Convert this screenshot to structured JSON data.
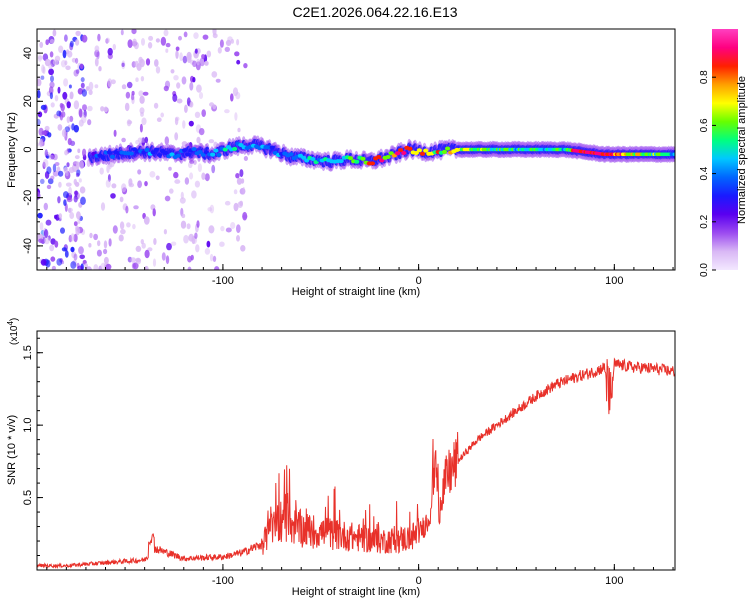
{
  "title": "C2E1.2026.064.22.16.E13",
  "chart_data": [
    {
      "type": "heatmap",
      "name": "spectrogram",
      "xlabel": "Height of straight line (km)",
      "ylabel": "Frequency (Hz)",
      "xlim": [
        -195,
        131
      ],
      "ylim": [
        -50,
        50
      ],
      "x_ticks": [
        -100,
        0,
        100
      ],
      "y_ticks": [
        -40,
        -20,
        0,
        20,
        40
      ],
      "x_tick_labels": [
        "-100",
        "0",
        "100"
      ],
      "y_tick_labels": [
        "-40",
        "-20",
        "0",
        "20",
        "40"
      ],
      "colorbar": {
        "label": "Normalized spectral amplitude",
        "range": [
          0.0,
          1.0
        ],
        "ticks": [
          0.0,
          0.2,
          0.4,
          0.6,
          0.8
        ],
        "tick_labels": [
          "0.0",
          "0.2",
          "0.4",
          "0.6",
          "0.8"
        ],
        "colors": [
          "#f3e8ff",
          "#d9b8f5",
          "#9c4bf0",
          "#5a00f0",
          "#1a1aff",
          "#0066ff",
          "#00c8ff",
          "#00ff80",
          "#66ff00",
          "#ffff00",
          "#ffa000",
          "#ff2000",
          "#ff0080",
          "#ff40c0"
        ]
      },
      "signal_track": {
        "x": [
          -165,
          -155,
          -145,
          -135,
          -125,
          -115,
          -105,
          -95,
          -85,
          -75,
          -65,
          -55,
          -45,
          -35,
          -25,
          -15,
          -5,
          5,
          15,
          25,
          50,
          75,
          95,
          130
        ],
        "freq": [
          -3,
          -2,
          -1,
          -1,
          -2,
          -1,
          -2,
          1,
          2,
          0,
          -3,
          -4,
          -5,
          -4,
          -5,
          -3,
          0,
          -1,
          0,
          0,
          0,
          0,
          -2,
          -2
        ],
        "amplitude": [
          0.35,
          0.4,
          0.4,
          0.4,
          0.4,
          0.4,
          0.45,
          0.5,
          0.45,
          0.4,
          0.45,
          0.5,
          0.55,
          0.6,
          0.8,
          0.75,
          0.85,
          0.8,
          0.7,
          0.65,
          0.55,
          0.55,
          0.95,
          0.5
        ]
      },
      "noise_region_x": [
        -195,
        -88
      ]
    },
    {
      "type": "line",
      "name": "snr",
      "xlabel": "Height of straight line (km)",
      "ylabel": "SNR (10 * v/v)",
      "y_scale_note": "(x10",
      "y_scale_exp": "4",
      "xlim": [
        -195,
        131
      ],
      "ylim": [
        0,
        16500
      ],
      "x_ticks": [
        -100,
        0,
        100
      ],
      "y_ticks": [
        5000,
        10000,
        15000
      ],
      "x_tick_labels": [
        "-100",
        "0",
        "100"
      ],
      "y_tick_labels": [
        "0.5",
        "1.0",
        "1.5"
      ],
      "color": "#e8312a",
      "series": [
        {
          "name": "SNR",
          "x": [
            -195,
            -180,
            -160,
            -140,
            -135,
            -120,
            -100,
            -90,
            -80,
            -75,
            -70,
            -60,
            -50,
            -40,
            -30,
            -20,
            -10,
            -5,
            0,
            5,
            8,
            10,
            12,
            15,
            20,
            30,
            40,
            50,
            60,
            70,
            80,
            90,
            95,
            98,
            100,
            110,
            120,
            131
          ],
          "y": [
            300,
            300,
            500,
            700,
            1500,
            800,
            900,
            1200,
            1800,
            2800,
            3500,
            2800,
            2600,
            2400,
            2200,
            2000,
            2100,
            2200,
            2500,
            3500,
            6000,
            3800,
            5500,
            6500,
            7500,
            9000,
            10000,
            11000,
            12000,
            12800,
            13300,
            13700,
            14000,
            11500,
            14200,
            14000,
            13900,
            13700
          ]
        }
      ]
    }
  ]
}
